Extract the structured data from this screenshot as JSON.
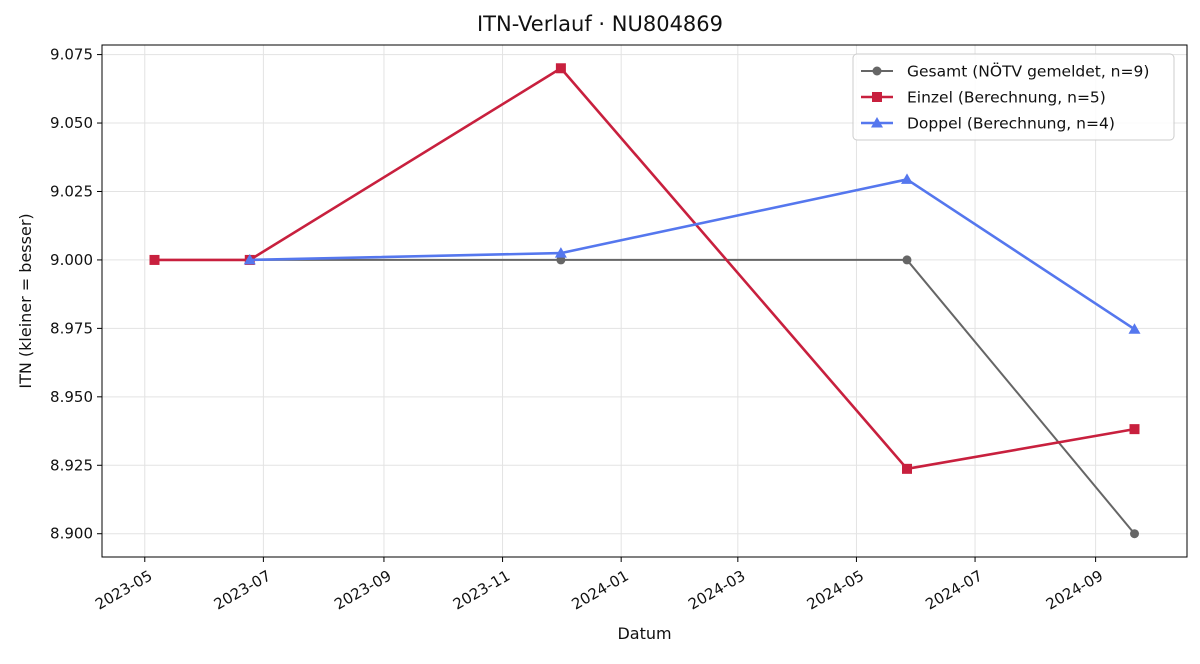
{
  "chart_data": {
    "type": "line",
    "title": "ITN-Verlauf · NU804869",
    "xlabel": "Datum",
    "ylabel": "ITN  (kleiner = besser)",
    "x_type": "date",
    "xlim": [
      "2023-04-09",
      "2024-10-18"
    ],
    "ylim": [
      8.8915,
      9.0785
    ],
    "x_ticks": [
      "2023-05",
      "2023-07",
      "2023-09",
      "2023-11",
      "2024-01",
      "2024-03",
      "2024-05",
      "2024-07",
      "2024-09"
    ],
    "y_ticks": [
      8.9,
      8.925,
      8.95,
      8.975,
      9.0,
      9.025,
      9.05,
      9.075
    ],
    "y_tick_labels": [
      "8.900",
      "8.925",
      "8.950",
      "8.975",
      "9.000",
      "9.025",
      "9.050",
      "9.075"
    ],
    "grid": true,
    "legend_position": "top-right",
    "series": [
      {
        "name": "Gesamt (NÖTV gemeldet, n=9)",
        "color": "#666666",
        "marker": "circle",
        "points": [
          {
            "x": "2023-06-24",
            "y": 9.0
          },
          {
            "x": "2023-12-01",
            "y": 9.0
          },
          {
            "x": "2024-05-27",
            "y": 9.0
          },
          {
            "x": "2024-09-21",
            "y": 8.9
          }
        ]
      },
      {
        "name": "Einzel (Berechnung, n=5)",
        "color": "#c8203e",
        "marker": "square",
        "points": [
          {
            "x": "2023-05-06",
            "y": 9.0
          },
          {
            "x": "2023-06-24",
            "y": 9.0
          },
          {
            "x": "2023-12-01",
            "y": 9.07
          },
          {
            "x": "2024-05-27",
            "y": 8.9237
          },
          {
            "x": "2024-09-21",
            "y": 8.9382
          }
        ]
      },
      {
        "name": "Doppel (Berechnung, n=4)",
        "color": "#5577ee",
        "marker": "triangle",
        "points": [
          {
            "x": "2023-06-24",
            "y": 9.0
          },
          {
            "x": "2023-12-01",
            "y": 9.0025
          },
          {
            "x": "2024-05-27",
            "y": 9.0294
          },
          {
            "x": "2024-09-21",
            "y": 8.9747
          }
        ]
      }
    ]
  }
}
